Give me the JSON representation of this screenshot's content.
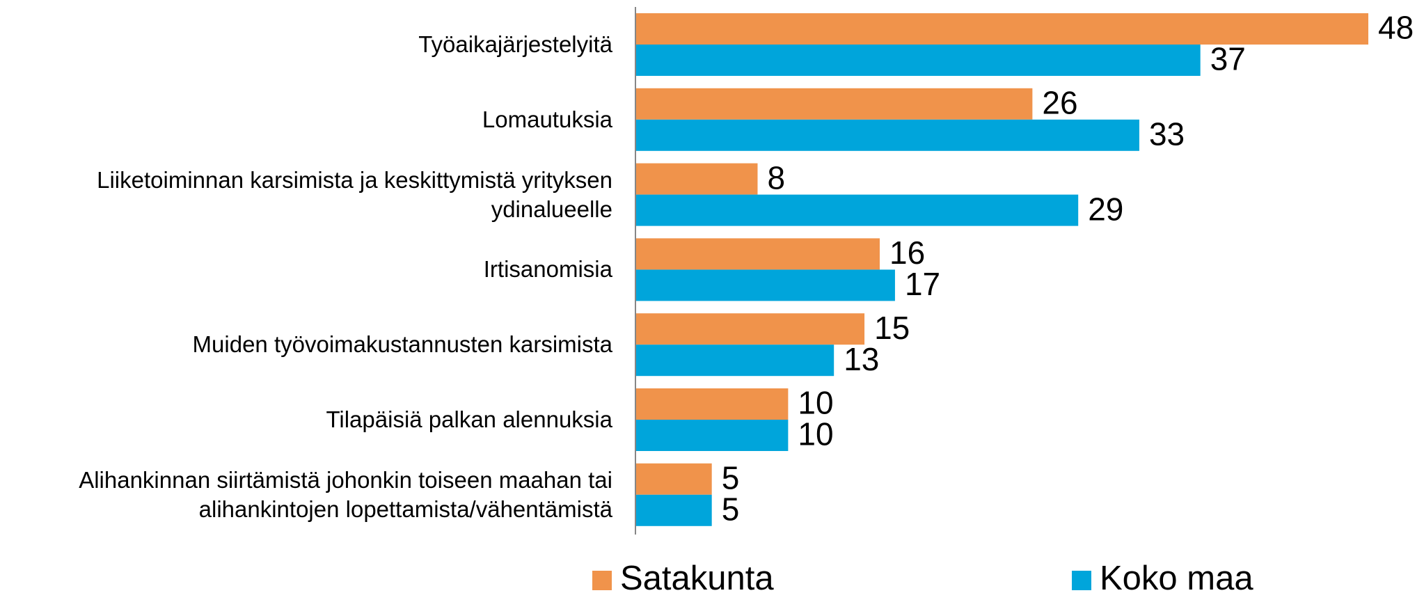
{
  "chart_data": {
    "type": "bar",
    "orientation": "horizontal",
    "categories": [
      "Työaikajärjestelyitä",
      "Lomautuksia",
      "Liiketoiminnan karsimista ja keskittymistä yrityksen ydinalueelle",
      "Irtisanomisia",
      "Muiden työvoimakustannusten karsimista",
      "Tilapäisiä palkan alennuksia",
      "Alihankinnan siirtämistä johonkin toiseen maahan tai alihankintojen lopettamista/vähentämistä"
    ],
    "series": [
      {
        "name": "Satakunta",
        "color": "#f0934b",
        "values": [
          48,
          26,
          8,
          16,
          15,
          10,
          5
        ]
      },
      {
        "name": "Koko maa",
        "color": "#00a5db",
        "values": [
          37,
          33,
          29,
          17,
          13,
          10,
          5
        ]
      }
    ],
    "legend": "bottom"
  }
}
